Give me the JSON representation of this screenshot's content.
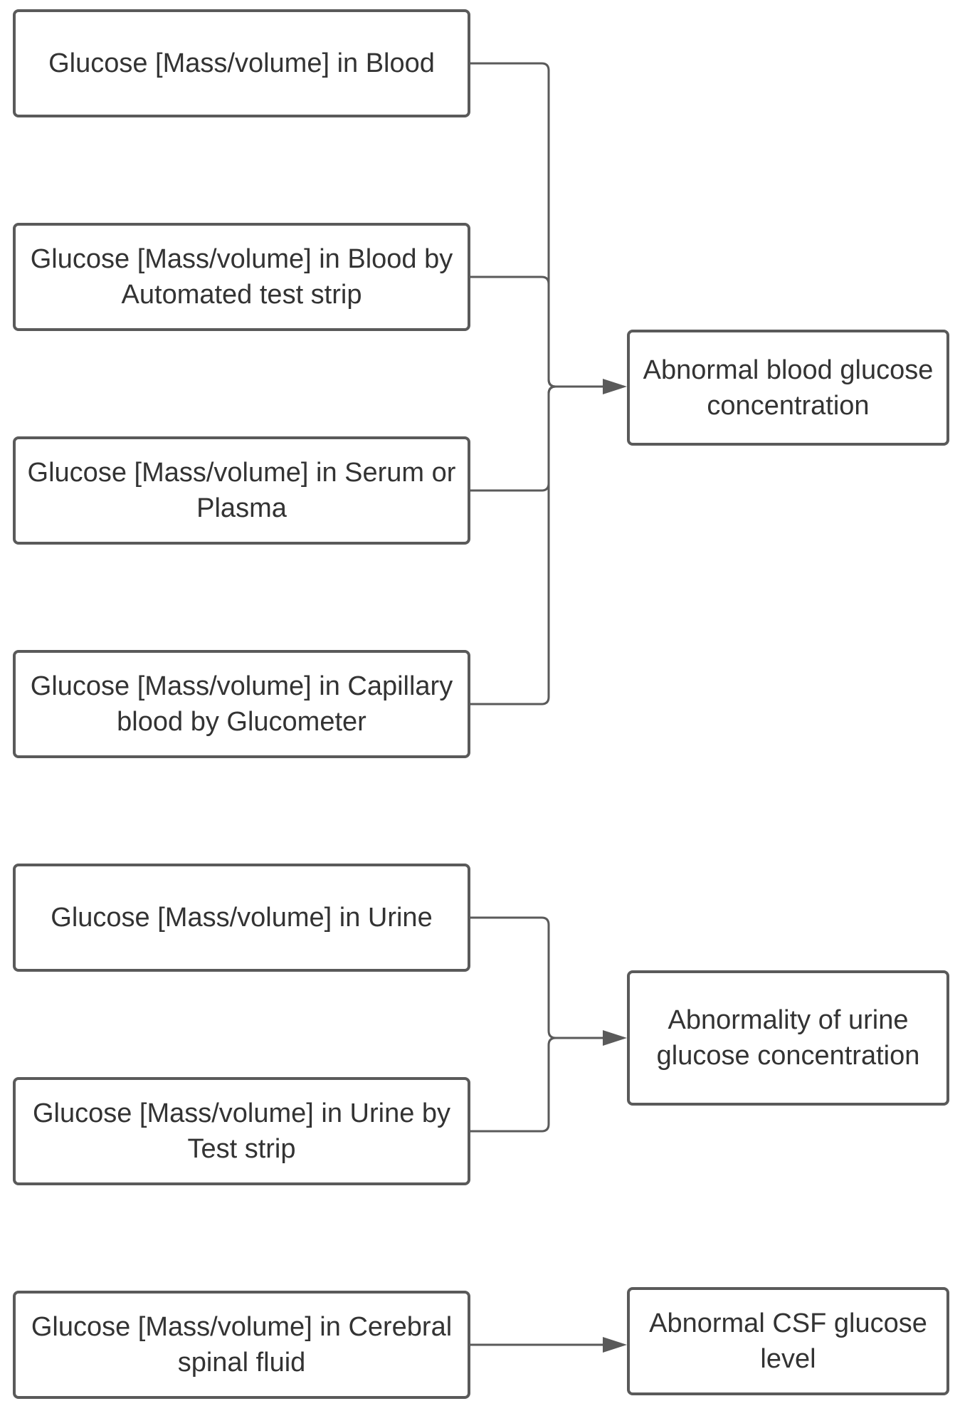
{
  "diagram": {
    "sources": [
      {
        "label": "Glucose [Mass/volume] in Blood"
      },
      {
        "label": "Glucose [Mass/volume] in Blood by Automated test strip"
      },
      {
        "label": "Glucose [Mass/volume] in Serum or Plasma"
      },
      {
        "label": "Glucose [Mass/volume] in Capillary blood by Glucometer"
      },
      {
        "label": "Glucose [Mass/volume] in Urine"
      },
      {
        "label": "Glucose [Mass/volume] in Urine by Test strip"
      },
      {
        "label": "Glucose [Mass/volume] in Cerebral spinal fluid"
      }
    ],
    "targets": [
      {
        "label": "Abnormal blood glucose concentration"
      },
      {
        "label": "Abnormality of urine glucose concentration"
      },
      {
        "label": "Abnormal CSF glucose level"
      }
    ],
    "edges": [
      {
        "from": 0,
        "to": 0
      },
      {
        "from": 1,
        "to": 0
      },
      {
        "from": 2,
        "to": 0
      },
      {
        "from": 3,
        "to": 0
      },
      {
        "from": 4,
        "to": 1
      },
      {
        "from": 5,
        "to": 1
      },
      {
        "from": 6,
        "to": 2
      }
    ],
    "colors": {
      "stroke": "#5a5a5a",
      "text": "#333333",
      "background": "#ffffff"
    }
  }
}
